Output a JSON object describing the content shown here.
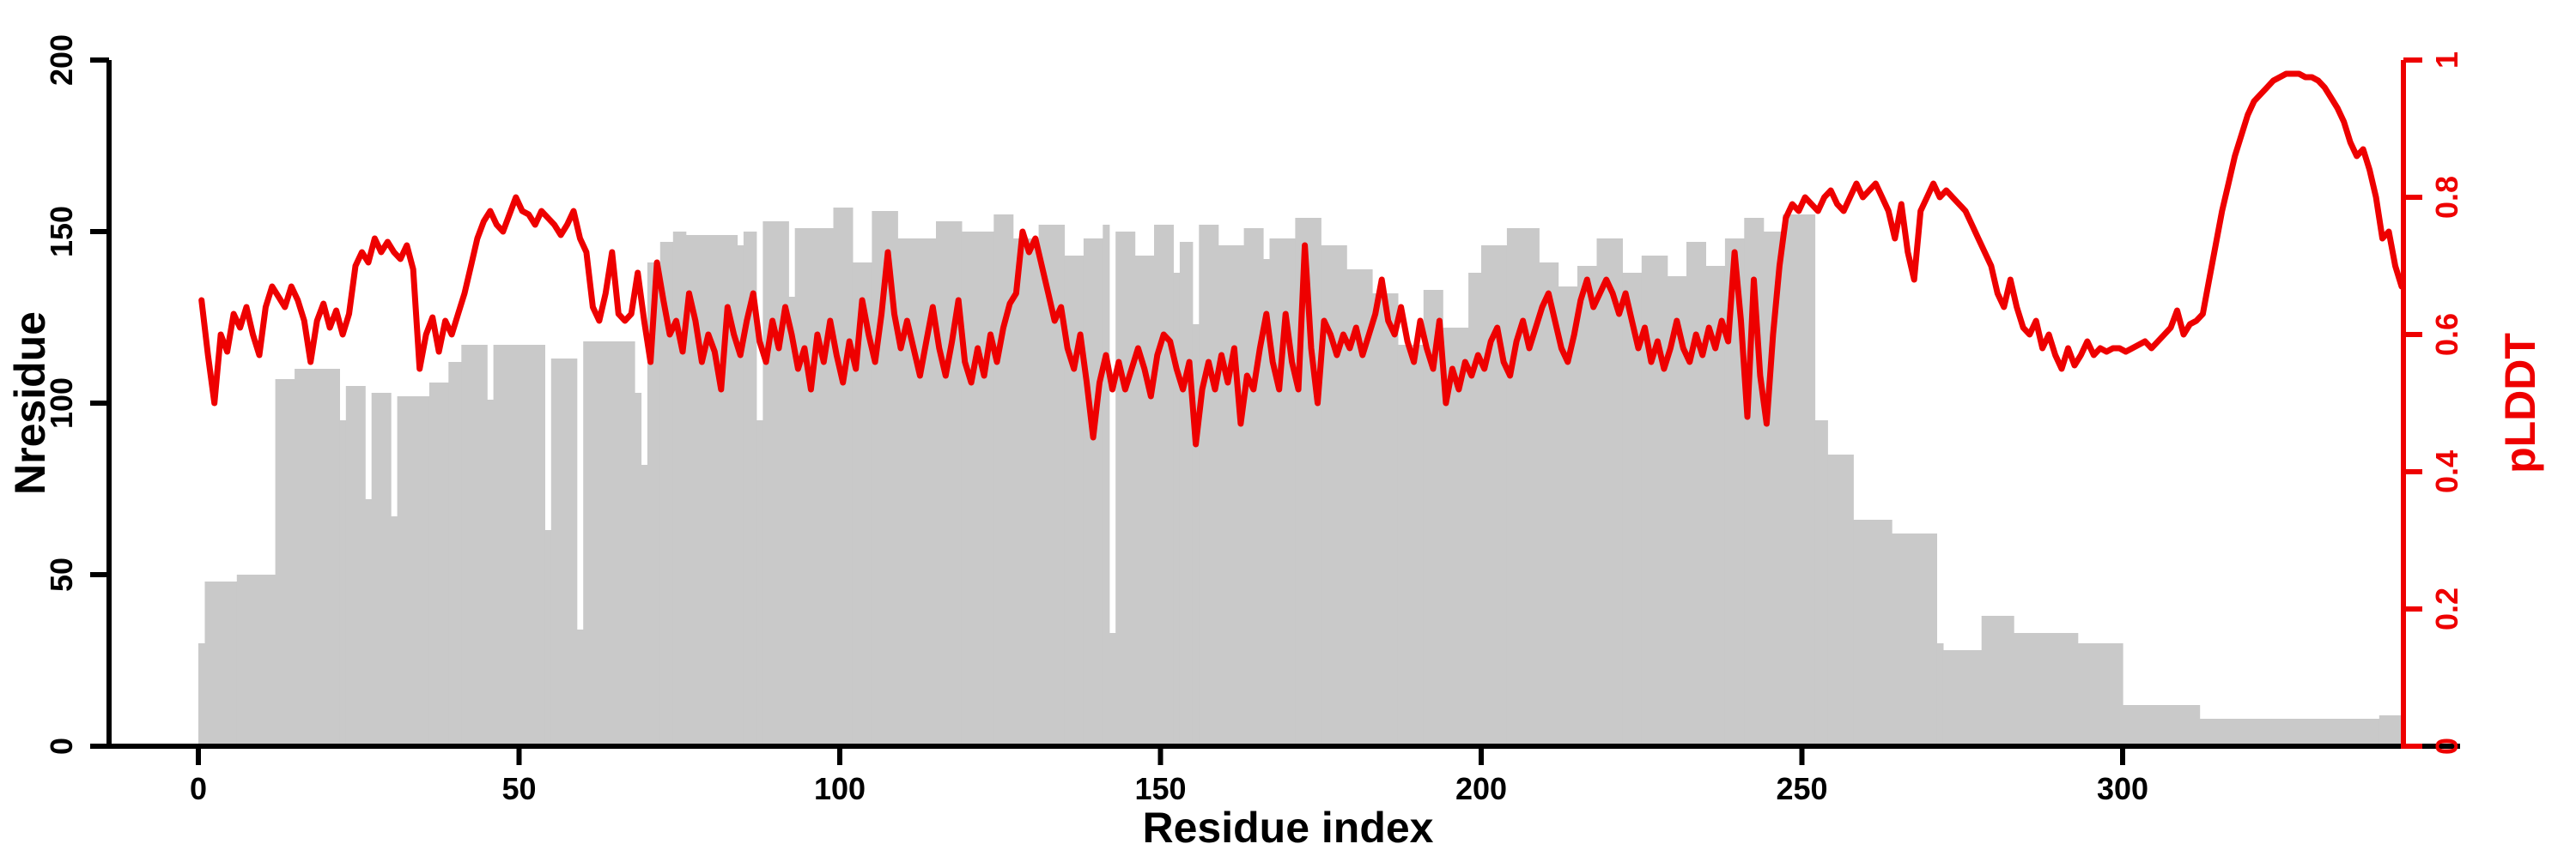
{
  "chart_data": {
    "type": "composite-bar-line",
    "title": "",
    "xlabel": "Residue index",
    "ylabel_left": "Nresidue",
    "ylabel_right": "pLDDT",
    "x_range": [
      0,
      345
    ],
    "ylim_left": [
      0,
      200
    ],
    "ylim_right": [
      0,
      1
    ],
    "grid": false,
    "legend": "none",
    "x_ticks": [
      "0",
      "50",
      "100",
      "150",
      "200",
      "250",
      "300"
    ],
    "x_tick_values": [
      0,
      50,
      100,
      150,
      200,
      250,
      300
    ],
    "y_ticks_left": [
      "0",
      "50",
      "100",
      "150",
      "200"
    ],
    "y_tick_values_left": [
      0,
      50,
      100,
      150,
      200
    ],
    "y_ticks_right": [
      "0",
      "0.2",
      "0.4",
      "0.6",
      "0.8",
      "1"
    ],
    "y_tick_values_right": [
      0,
      0.2,
      0.4,
      0.6,
      0.8,
      1
    ],
    "series": [
      {
        "name": "Nresidue",
        "type": "bar",
        "color": "#c9c9c9",
        "runs_format": "[from_residue, to_residue, value]",
        "runs": [
          [
            0,
            0,
            30
          ],
          [
            1,
            5,
            48
          ],
          [
            6,
            11,
            50
          ],
          [
            12,
            14,
            107
          ],
          [
            15,
            21,
            110
          ],
          [
            22,
            22,
            95
          ],
          [
            23,
            25,
            105
          ],
          [
            26,
            26,
            72
          ],
          [
            27,
            29,
            103
          ],
          [
            30,
            30,
            67
          ],
          [
            31,
            35,
            102
          ],
          [
            36,
            38,
            106
          ],
          [
            39,
            40,
            112
          ],
          [
            41,
            44,
            117
          ],
          [
            45,
            45,
            101
          ],
          [
            46,
            53,
            117
          ],
          [
            54,
            54,
            63
          ],
          [
            55,
            58,
            113
          ],
          [
            59,
            59,
            34
          ],
          [
            60,
            67,
            118
          ],
          [
            68,
            68,
            103
          ],
          [
            69,
            69,
            82
          ],
          [
            70,
            71,
            141
          ],
          [
            72,
            73,
            147
          ],
          [
            74,
            75,
            150
          ],
          [
            76,
            83,
            149
          ],
          [
            84,
            84,
            146
          ],
          [
            85,
            86,
            150
          ],
          [
            87,
            87,
            95
          ],
          [
            88,
            91,
            153
          ],
          [
            92,
            92,
            131
          ],
          [
            93,
            98,
            151
          ],
          [
            99,
            101,
            157
          ],
          [
            102,
            104,
            141
          ],
          [
            105,
            108,
            156
          ],
          [
            109,
            114,
            148
          ],
          [
            115,
            118,
            153
          ],
          [
            119,
            123,
            150
          ],
          [
            124,
            126,
            155
          ],
          [
            127,
            130,
            148
          ],
          [
            131,
            134,
            152
          ],
          [
            135,
            137,
            143
          ],
          [
            138,
            140,
            148
          ],
          [
            141,
            141,
            152
          ],
          [
            142,
            142,
            33
          ],
          [
            143,
            145,
            150
          ],
          [
            146,
            148,
            143
          ],
          [
            149,
            151,
            152
          ],
          [
            152,
            152,
            138
          ],
          [
            153,
            154,
            147
          ],
          [
            155,
            155,
            123
          ],
          [
            156,
            158,
            152
          ],
          [
            159,
            162,
            146
          ],
          [
            163,
            165,
            151
          ],
          [
            166,
            166,
            142
          ],
          [
            167,
            170,
            148
          ],
          [
            171,
            174,
            154
          ],
          [
            175,
            178,
            146
          ],
          [
            179,
            182,
            139
          ],
          [
            183,
            186,
            132
          ],
          [
            187,
            190,
            117
          ],
          [
            191,
            193,
            133
          ],
          [
            194,
            197,
            122
          ],
          [
            198,
            199,
            138
          ],
          [
            200,
            203,
            146
          ],
          [
            204,
            208,
            151
          ],
          [
            209,
            211,
            141
          ],
          [
            212,
            214,
            134
          ],
          [
            215,
            217,
            140
          ],
          [
            218,
            221,
            148
          ],
          [
            222,
            224,
            138
          ],
          [
            225,
            228,
            143
          ],
          [
            229,
            231,
            137
          ],
          [
            232,
            234,
            147
          ],
          [
            235,
            237,
            140
          ],
          [
            238,
            240,
            148
          ],
          [
            241,
            243,
            154
          ],
          [
            244,
            246,
            150
          ],
          [
            247,
            251,
            155
          ],
          [
            252,
            253,
            95
          ],
          [
            254,
            257,
            85
          ],
          [
            258,
            263,
            66
          ],
          [
            264,
            270,
            62
          ],
          [
            271,
            271,
            30
          ],
          [
            272,
            277,
            28
          ],
          [
            278,
            282,
            38
          ],
          [
            283,
            292,
            33
          ],
          [
            293,
            299,
            30
          ],
          [
            300,
            311,
            12
          ],
          [
            312,
            339,
            8
          ],
          [
            340,
            343,
            9
          ]
        ]
      },
      {
        "name": "pLDDT",
        "type": "line",
        "color": "#ee0000",
        "x_start": 0,
        "x_step": 1,
        "values": [
          0.65,
          0.57,
          0.5,
          0.6,
          0.575,
          0.63,
          0.61,
          0.64,
          0.6,
          0.57,
          0.64,
          0.67,
          0.655,
          0.64,
          0.67,
          0.65,
          0.62,
          0.56,
          0.62,
          0.645,
          0.61,
          0.635,
          0.6,
          0.63,
          0.7,
          0.72,
          0.705,
          0.74,
          0.72,
          0.735,
          0.72,
          0.71,
          0.73,
          0.695,
          0.55,
          0.6,
          0.625,
          0.575,
          0.62,
          0.6,
          0.63,
          0.66,
          0.7,
          0.74,
          0.765,
          0.78,
          0.76,
          0.75,
          0.775,
          0.8,
          0.78,
          0.775,
          0.76,
          0.78,
          0.77,
          0.76,
          0.745,
          0.76,
          0.78,
          0.74,
          0.72,
          0.64,
          0.62,
          0.66,
          0.72,
          0.63,
          0.62,
          0.63,
          0.69,
          0.62,
          0.56,
          0.705,
          0.65,
          0.6,
          0.62,
          0.575,
          0.66,
          0.62,
          0.56,
          0.6,
          0.575,
          0.52,
          0.64,
          0.6,
          0.57,
          0.62,
          0.66,
          0.59,
          0.56,
          0.62,
          0.58,
          0.64,
          0.6,
          0.55,
          0.58,
          0.52,
          0.6,
          0.56,
          0.62,
          0.57,
          0.53,
          0.59,
          0.55,
          0.65,
          0.6,
          0.56,
          0.63,
          0.72,
          0.63,
          0.58,
          0.62,
          0.58,
          0.54,
          0.59,
          0.64,
          0.58,
          0.54,
          0.59,
          0.65,
          0.56,
          0.53,
          0.58,
          0.54,
          0.6,
          0.56,
          0.61,
          0.645,
          0.66,
          0.75,
          0.72,
          0.74,
          0.7,
          0.66,
          0.62,
          0.64,
          0.58,
          0.55,
          0.6,
          0.53,
          0.45,
          0.53,
          0.57,
          0.52,
          0.56,
          0.52,
          0.55,
          0.58,
          0.55,
          0.51,
          0.57,
          0.6,
          0.59,
          0.55,
          0.52,
          0.56,
          0.44,
          0.52,
          0.56,
          0.52,
          0.57,
          0.53,
          0.58,
          0.47,
          0.54,
          0.52,
          0.58,
          0.63,
          0.56,
          0.52,
          0.63,
          0.56,
          0.52,
          0.73,
          0.58,
          0.5,
          0.62,
          0.6,
          0.57,
          0.6,
          0.58,
          0.61,
          0.57,
          0.6,
          0.63,
          0.68,
          0.62,
          0.6,
          0.64,
          0.59,
          0.56,
          0.62,
          0.58,
          0.55,
          0.62,
          0.5,
          0.55,
          0.52,
          0.56,
          0.54,
          0.57,
          0.55,
          0.59,
          0.61,
          0.56,
          0.54,
          0.59,
          0.62,
          0.58,
          0.61,
          0.64,
          0.66,
          0.62,
          0.58,
          0.56,
          0.6,
          0.65,
          0.68,
          0.64,
          0.66,
          0.68,
          0.66,
          0.63,
          0.66,
          0.62,
          0.58,
          0.61,
          0.56,
          0.59,
          0.55,
          0.58,
          0.62,
          0.58,
          0.56,
          0.6,
          0.57,
          0.61,
          0.58,
          0.62,
          0.59,
          0.72,
          0.62,
          0.48,
          0.68,
          0.54,
          0.47,
          0.6,
          0.7,
          0.77,
          0.79,
          0.78,
          0.8,
          0.79,
          0.78,
          0.8,
          0.81,
          0.79,
          0.78,
          0.8,
          0.82,
          0.8,
          0.81,
          0.82,
          0.8,
          0.78,
          0.74,
          0.79,
          0.72,
          0.68,
          0.78,
          0.8,
          0.82,
          0.8,
          0.81,
          0.8,
          0.79,
          0.78,
          0.76,
          0.74,
          0.72,
          0.7,
          0.66,
          0.64,
          0.68,
          0.64,
          0.61,
          0.6,
          0.62,
          0.58,
          0.6,
          0.57,
          0.55,
          0.58,
          0.555,
          0.57,
          0.59,
          0.57,
          0.58,
          0.575,
          0.58,
          0.58,
          0.575,
          0.58,
          0.585,
          0.59,
          0.58,
          0.59,
          0.6,
          0.61,
          0.635,
          0.6,
          0.615,
          0.62,
          0.63,
          0.68,
          0.73,
          0.78,
          0.82,
          0.86,
          0.89,
          0.92,
          0.94,
          0.95,
          0.96,
          0.97,
          0.975,
          0.98,
          0.98,
          0.98,
          0.975,
          0.975,
          0.97,
          0.96,
          0.945,
          0.93,
          0.91,
          0.88,
          0.86,
          0.87,
          0.84,
          0.8,
          0.74,
          0.75,
          0.7,
          0.67
        ]
      }
    ]
  },
  "colors": {
    "background": "#ffffff",
    "bars": "#c9c9c9",
    "line": "#ee0000",
    "axis_left_bottom": "#000000",
    "axis_right": "#ee0000"
  }
}
